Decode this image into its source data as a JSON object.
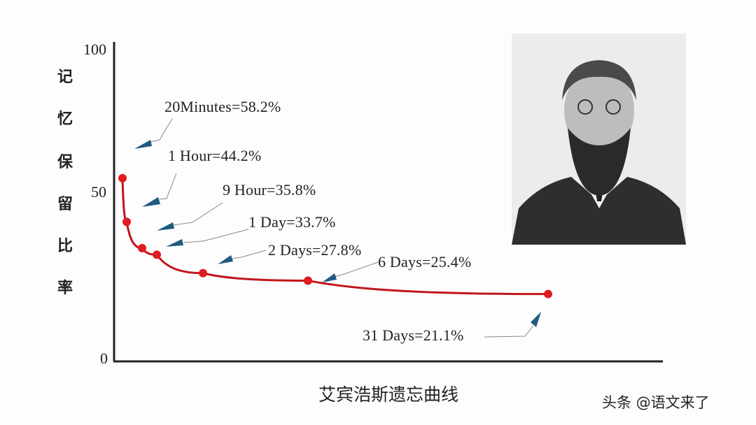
{
  "chart_data": {
    "type": "line",
    "title": "艾宾浩斯遗忘曲线",
    "ylabel": "记忆保留比率",
    "ylim": [
      0,
      100
    ],
    "yticks": [
      "100",
      "50",
      "0"
    ],
    "xlabel": "",
    "grid": false,
    "line_color": "#c0161c",
    "marker_color": "#e01b22",
    "arrow_color": "#1f5a80",
    "points": [
      {
        "label": "20Minutes=58.2%",
        "x": "20 Minutes",
        "y": 58.2
      },
      {
        "label": "1 Hour=44.2%",
        "x": "1 Hour",
        "y": 44.2
      },
      {
        "label": "9 Hour=35.8%",
        "x": "9 Hour",
        "y": 35.8
      },
      {
        "label": "1 Day=33.7%",
        "x": "1 Day",
        "y": 33.7
      },
      {
        "label": "2 Days=27.8%",
        "x": "2 Days",
        "y": 27.8
      },
      {
        "label": "6 Days=25.4%",
        "x": "6 Days",
        "y": 25.4
      },
      {
        "label": "31 Days=21.1%",
        "x": "31 Days",
        "y": 21.1
      }
    ]
  },
  "ylabel_chars": [
    "记",
    "忆",
    "保",
    "留",
    "比",
    "率"
  ],
  "portrait": "photo of Hermann Ebbinghaus",
  "watermark": "头条 @语文来了"
}
